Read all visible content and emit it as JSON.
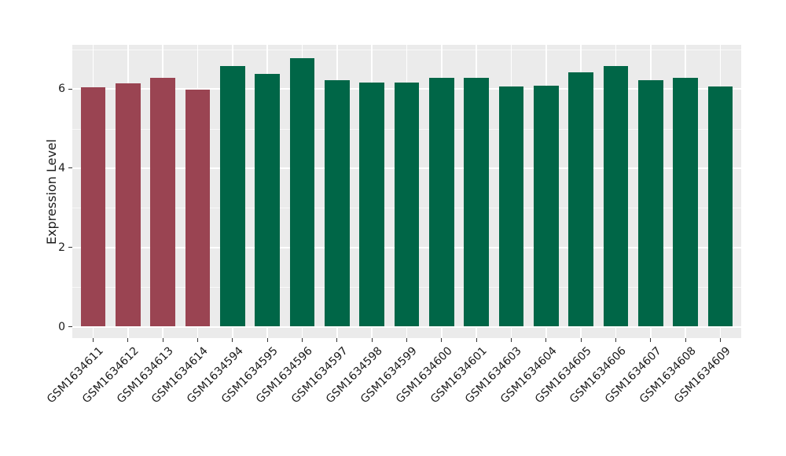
{
  "chart_data": {
    "type": "bar",
    "title": "",
    "xlabel": "",
    "ylabel": "Expression Level",
    "categories": [
      "GSM1634611",
      "GSM1634612",
      "GSM1634613",
      "GSM1634614",
      "GSM1634594",
      "GSM1634595",
      "GSM1634596",
      "GSM1634597",
      "GSM1634598",
      "GSM1634599",
      "GSM1634600",
      "GSM1634601",
      "GSM1634603",
      "GSM1634604",
      "GSM1634605",
      "GSM1634606",
      "GSM1634607",
      "GSM1634608",
      "GSM1634609"
    ],
    "values": [
      6.05,
      6.14,
      6.27,
      5.99,
      6.58,
      6.37,
      6.78,
      6.22,
      6.16,
      6.17,
      6.28,
      6.28,
      6.06,
      6.09,
      6.41,
      6.58,
      6.23,
      6.28,
      6.06
    ],
    "bar_groups": [
      "red",
      "red",
      "red",
      "red",
      "green",
      "green",
      "green",
      "green",
      "green",
      "green",
      "green",
      "green",
      "green",
      "green",
      "green",
      "green",
      "green",
      "green",
      "green"
    ],
    "group_colors": {
      "red": "#9a4452",
      "green": "#006647"
    },
    "yticks": [
      0,
      2,
      4,
      6
    ],
    "yminorticks": [
      1,
      3,
      5,
      7
    ],
    "ylim": [
      -0.29,
      7.11
    ],
    "legend": "none",
    "grid": "white major and minor horizontal lines, white vertical lines at category centers",
    "panel_bg": "#ebebeb",
    "figure_bg": "#ffffff",
    "x_label_rotation_deg": 45
  }
}
